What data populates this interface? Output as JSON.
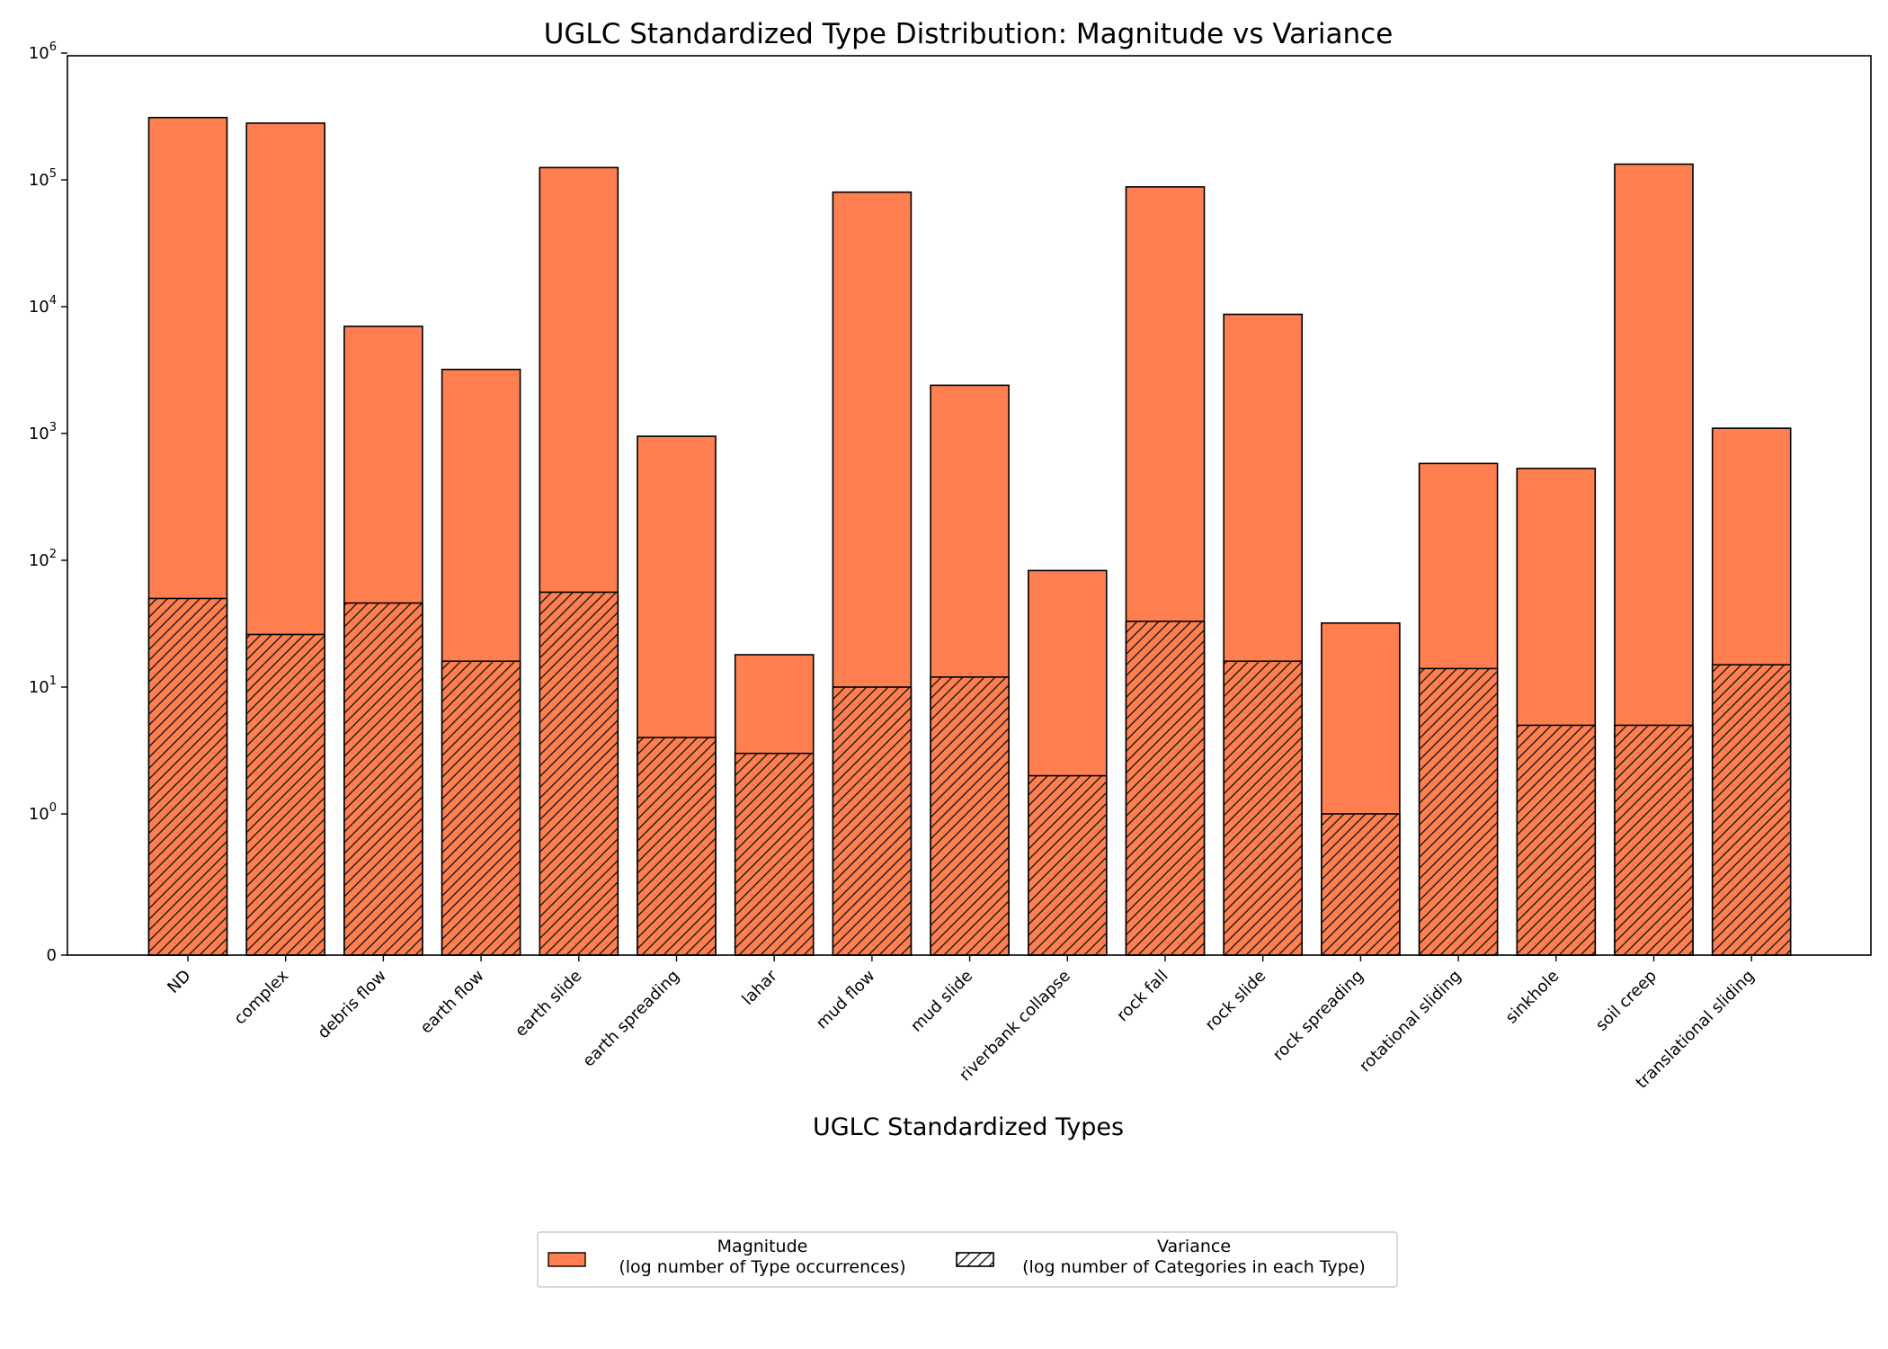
{
  "chart_data": {
    "type": "bar",
    "title": "UGLC Standardized Type Distribution: Magnitude vs Variance",
    "xlabel": "UGLC Standardized Types",
    "ylabel": "",
    "yscale": "symlog",
    "ylim": [
      0,
      1000000
    ],
    "y_ticks": [
      {
        "value": 0,
        "base": "0",
        "exp": ""
      },
      {
        "value": 1,
        "base": "10",
        "exp": "0"
      },
      {
        "value": 10,
        "base": "10",
        "exp": "1"
      },
      {
        "value": 100,
        "base": "10",
        "exp": "2"
      },
      {
        "value": 1000,
        "base": "10",
        "exp": "3"
      },
      {
        "value": 10000,
        "base": "10",
        "exp": "4"
      },
      {
        "value": 100000,
        "base": "10",
        "exp": "5"
      },
      {
        "value": 1000000,
        "base": "10",
        "exp": "6"
      }
    ],
    "categories": [
      "ND",
      "complex",
      "debris flow",
      "earth flow",
      "earth slide",
      "earth spreading",
      "lahar",
      "mud flow",
      "mud slide",
      "riverbank collapse",
      "rock fall",
      "rock slide",
      "rock spreading",
      "rotational sliding",
      "sinkhole",
      "soil creep",
      "translational sliding"
    ],
    "series": [
      {
        "name": "Magnitude\n(log number of Type occurrences)",
        "color": "#ff7f50",
        "hatch": false,
        "values": [
          310000,
          280000,
          7000,
          3200,
          125000,
          950,
          18,
          80000,
          2400,
          83,
          88000,
          8700,
          32,
          580,
          530,
          133000,
          1100
        ]
      },
      {
        "name": "Variance\n(log number of Categories in each Type)",
        "color": "#ff7f50",
        "hatch": true,
        "values": [
          50,
          26,
          46,
          16,
          56,
          4,
          3,
          10,
          12,
          2,
          33,
          16,
          1,
          14,
          5,
          5,
          15
        ]
      }
    ],
    "grid": false,
    "legend": "bottom-center"
  }
}
